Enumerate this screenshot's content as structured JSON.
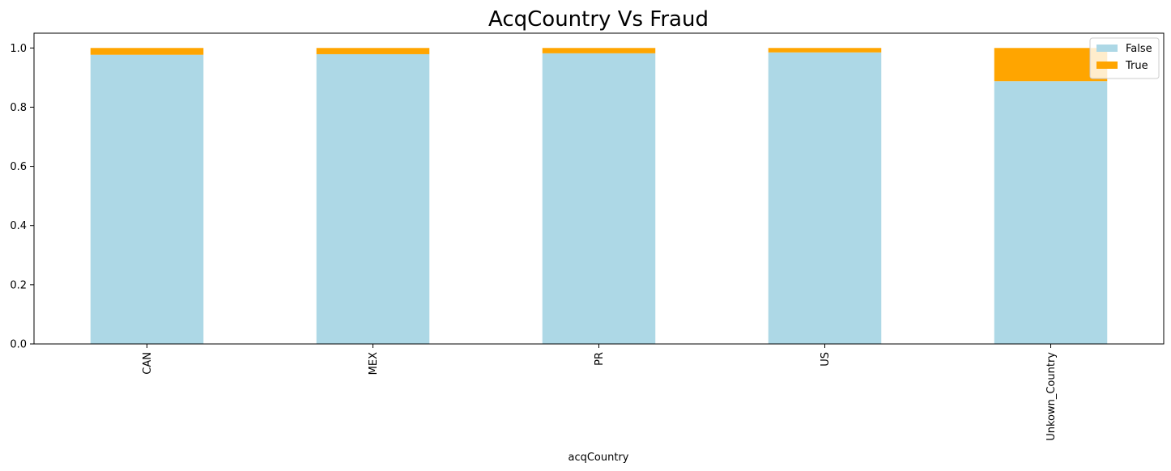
{
  "chart_data": {
    "type": "bar",
    "stacked": true,
    "title": "AcqCountry Vs Fraud",
    "xlabel": "acqCountry",
    "ylabel": "",
    "categories": [
      "CAN",
      "MEX",
      "PR",
      "US",
      "Unkown_Country"
    ],
    "series": [
      {
        "name": "False",
        "color": "#add8e6",
        "values": [
          0.977,
          0.979,
          0.982,
          0.985,
          0.888
        ]
      },
      {
        "name": "True",
        "color": "#ffa500",
        "values": [
          0.023,
          0.021,
          0.018,
          0.015,
          0.112
        ]
      }
    ],
    "ylim": [
      0,
      1.05
    ],
    "yticks": [
      "0.0",
      "0.2",
      "0.4",
      "0.6",
      "0.8",
      "1.0"
    ],
    "legend": {
      "position": "top-right",
      "entries": [
        "False",
        "True"
      ]
    },
    "grid": false
  }
}
